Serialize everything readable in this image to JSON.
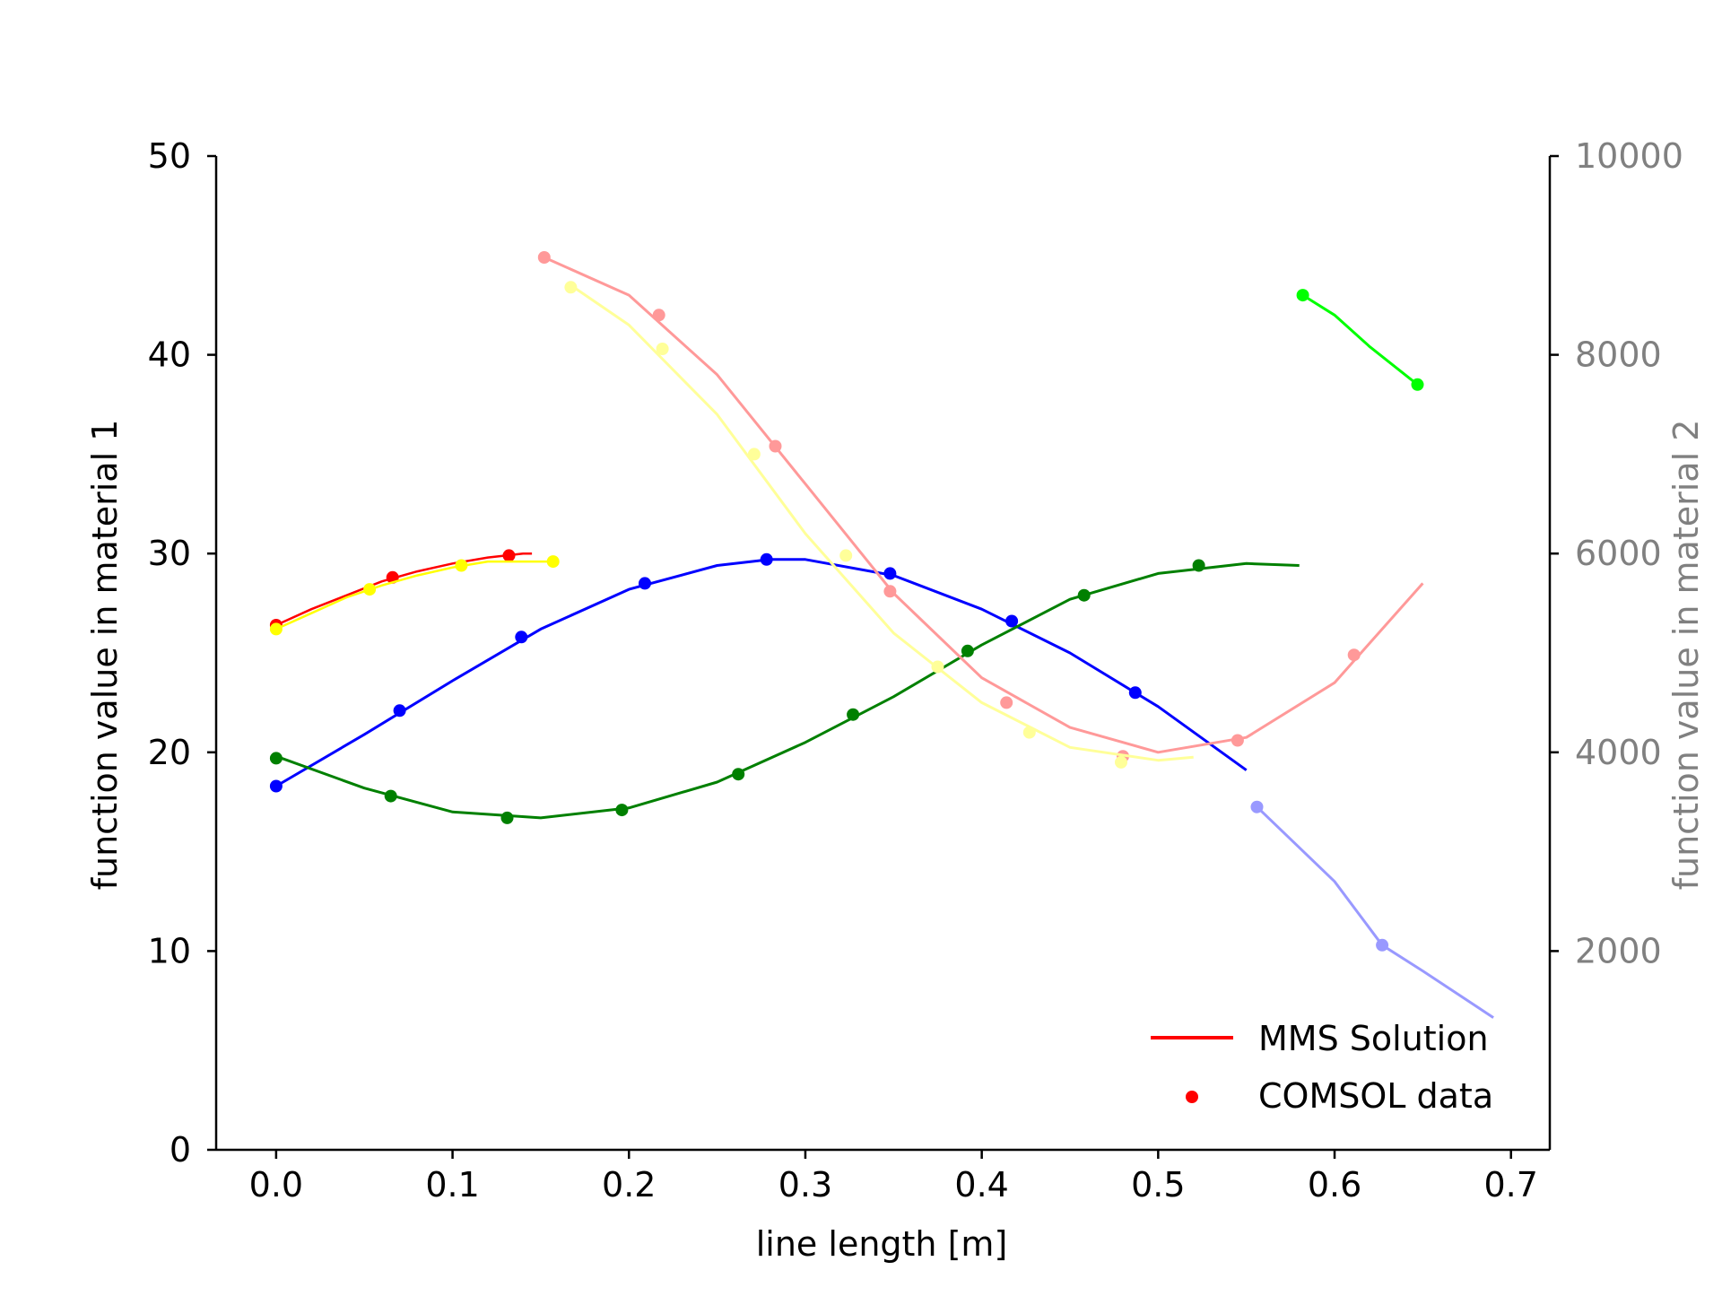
{
  "chart_data": {
    "type": "line",
    "xlabel": "line length [m]",
    "ylabel": "function value in material 1",
    "ylabel_right": "function value in material 2",
    "xlim": [
      -0.034,
      0.722
    ],
    "ylim": [
      0,
      50
    ],
    "ylim_right": [
      0,
      10000
    ],
    "x_ticks": [
      "0.0",
      "0.1",
      "0.2",
      "0.3",
      "0.4",
      "0.5",
      "0.6",
      "0.7"
    ],
    "y_ticks": [
      "0",
      "10",
      "20",
      "30",
      "40",
      "50"
    ],
    "y_ticks_right": [
      "2000",
      "4000",
      "6000",
      "8000",
      "10000"
    ],
    "grid": false,
    "legend": {
      "location": "lower right",
      "entries": [
        {
          "label": "MMS Solution",
          "marker": "line",
          "color": "#ff0000"
        },
        {
          "label": "COMSOL data",
          "marker": "dot",
          "color": "#ff0000"
        }
      ]
    },
    "series": [
      {
        "axis": "left",
        "color": "#ff0000",
        "stroke_width": 2.5,
        "line": {
          "x": [
            0.0,
            0.02,
            0.04,
            0.06,
            0.08,
            0.1,
            0.12,
            0.14,
            0.145
          ],
          "y": [
            26.4,
            27.2,
            27.9,
            28.6,
            29.1,
            29.5,
            29.8,
            30.0,
            30.0
          ]
        },
        "points": {
          "x": [
            0.0,
            0.066,
            0.132
          ],
          "y": [
            26.4,
            28.8,
            29.9
          ]
        }
      },
      {
        "axis": "left",
        "color": "#ffff00",
        "stroke_width": 2.5,
        "line": {
          "x": [
            0.0,
            0.02,
            0.04,
            0.06,
            0.08,
            0.1,
            0.12,
            0.14,
            0.16
          ],
          "y": [
            26.2,
            27.0,
            27.8,
            28.4,
            28.9,
            29.3,
            29.6,
            29.6,
            29.6
          ]
        },
        "points": {
          "x": [
            0.0,
            0.053,
            0.105,
            0.157
          ],
          "y": [
            26.2,
            28.2,
            29.4,
            29.6
          ]
        }
      },
      {
        "axis": "left",
        "color": "#0000ff",
        "stroke_width": 3,
        "line": {
          "x": [
            0.0,
            0.05,
            0.1,
            0.15,
            0.2,
            0.25,
            0.28,
            0.3,
            0.35,
            0.4,
            0.45,
            0.5,
            0.55
          ],
          "y": [
            18.3,
            20.9,
            23.6,
            26.2,
            28.2,
            29.4,
            29.7,
            29.7,
            28.9,
            27.2,
            25.0,
            22.3,
            19.1
          ]
        },
        "points": {
          "x": [
            0.0,
            0.07,
            0.139,
            0.209,
            0.278,
            0.348,
            0.417,
            0.487
          ],
          "y": [
            18.3,
            22.1,
            25.8,
            28.5,
            29.7,
            29.0,
            26.6,
            23.0
          ]
        }
      },
      {
        "axis": "left",
        "color": "#008000",
        "stroke_width": 3,
        "line": {
          "x": [
            0.0,
            0.05,
            0.1,
            0.15,
            0.2,
            0.25,
            0.3,
            0.35,
            0.4,
            0.45,
            0.5,
            0.55,
            0.58
          ],
          "y": [
            19.8,
            18.2,
            17.0,
            16.7,
            17.2,
            18.5,
            20.5,
            22.8,
            25.4,
            27.7,
            29.0,
            29.5,
            29.4
          ]
        },
        "points": {
          "x": [
            0.0,
            0.065,
            0.131,
            0.196,
            0.262,
            0.327,
            0.392,
            0.458,
            0.523
          ],
          "y": [
            19.7,
            17.8,
            16.7,
            17.1,
            18.9,
            21.9,
            25.1,
            27.9,
            29.4
          ]
        }
      },
      {
        "axis": "right",
        "color": "#ff9999",
        "stroke_width": 3,
        "line": {
          "x": [
            0.152,
            0.2,
            0.25,
            0.3,
            0.35,
            0.4,
            0.45,
            0.5,
            0.55,
            0.6,
            0.65
          ],
          "y": [
            8980,
            8600,
            7800,
            6700,
            5600,
            4750,
            4250,
            4000,
            4150,
            4700,
            5700
          ]
        },
        "points": {
          "x": [
            0.152,
            0.217,
            0.283,
            0.348,
            0.414,
            0.48,
            0.545,
            0.611
          ],
          "y": [
            8980,
            8400,
            7080,
            5620,
            4500,
            3960,
            4120,
            4980
          ]
        }
      },
      {
        "axis": "right",
        "color": "#ffff99",
        "stroke_width": 3,
        "line": {
          "x": [
            0.167,
            0.2,
            0.25,
            0.3,
            0.35,
            0.4,
            0.45,
            0.5,
            0.52
          ],
          "y": [
            8700,
            8300,
            7400,
            6200,
            5200,
            4500,
            4050,
            3920,
            3950
          ]
        },
        "points": {
          "x": [
            0.167,
            0.219,
            0.271,
            0.323,
            0.375,
            0.427,
            0.479
          ],
          "y": [
            8680,
            8060,
            7000,
            5980,
            4860,
            4200,
            3900
          ]
        }
      },
      {
        "axis": "right",
        "color": "#00ff00",
        "stroke_width": 3,
        "line": {
          "x": [
            0.582,
            0.6,
            0.62,
            0.647
          ],
          "y": [
            8600,
            8400,
            8080,
            7700
          ]
        },
        "points": {
          "x": [
            0.582,
            0.647
          ],
          "y": [
            8600,
            7700
          ]
        }
      },
      {
        "axis": "right",
        "color": "#9999ff",
        "stroke_width": 3,
        "line": {
          "x": [
            0.556,
            0.6,
            0.627,
            0.65,
            0.69
          ],
          "y": [
            3450,
            2700,
            2060,
            1800,
            1330
          ]
        },
        "points": {
          "x": [
            0.556,
            0.627
          ],
          "y": [
            3450,
            2060
          ]
        }
      }
    ]
  }
}
